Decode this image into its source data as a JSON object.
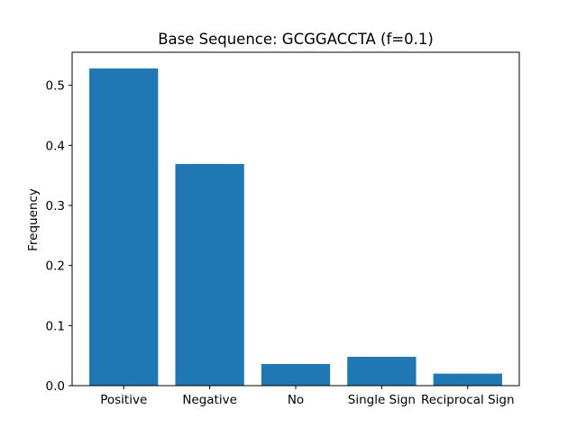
{
  "chart_data": {
    "type": "bar",
    "title": "Base Sequence: GCGGACCTA (f=0.1)",
    "xlabel": "",
    "ylabel": "Frequency",
    "categories": [
      "Positive",
      "Negative",
      "No",
      "Single Sign",
      "Reciprocal Sign"
    ],
    "values": [
      0.528,
      0.369,
      0.036,
      0.048,
      0.02
    ],
    "ylim": [
      0,
      0.555
    ],
    "yticks": [
      0.0,
      0.1,
      0.2,
      0.3,
      0.4,
      0.5
    ],
    "ytick_labels": [
      "0.0",
      "0.1",
      "0.2",
      "0.3",
      "0.4",
      "0.5"
    ],
    "bar_color": "#1f77b4",
    "grid": false,
    "legend": "none"
  }
}
